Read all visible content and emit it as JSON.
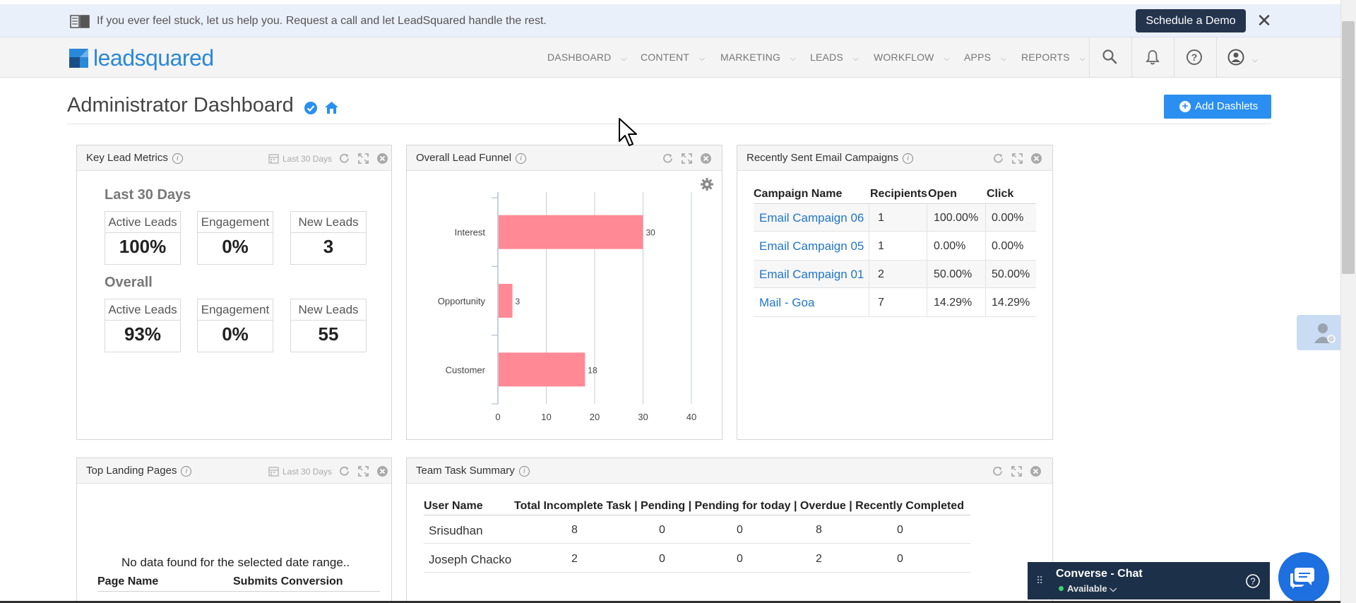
{
  "banner": {
    "message": "If you ever feel stuck, let us help you. Request a call and let LeadSquared handle the rest.",
    "demo_button": "Schedule a Demo",
    "close": "✕"
  },
  "logo": {
    "text": "leadsquared",
    "color": "#2a88d8"
  },
  "nav": {
    "items": [
      {
        "label": "DASHBOARD"
      },
      {
        "label": "CONTENT"
      },
      {
        "label": "MARKETING"
      },
      {
        "label": "LEADS"
      },
      {
        "label": "WORKFLOW"
      },
      {
        "label": "APPS"
      },
      {
        "label": "REPORTS"
      }
    ],
    "icons": [
      "search-icon",
      "bell-icon",
      "help-icon",
      "user-icon"
    ]
  },
  "header": {
    "title": "Administrator Dashboard",
    "add_dashlets": "Add Dashlets"
  },
  "key_lead_metrics": {
    "title": "Key Lead Metrics",
    "range": "Last 30 Days",
    "last30": {
      "heading": "Last 30 Days",
      "boxes": [
        {
          "label": "Active Leads",
          "value": "100%"
        },
        {
          "label": "Engagement",
          "value": "0%"
        },
        {
          "label": "New Leads",
          "value": "3"
        }
      ]
    },
    "overall": {
      "heading": "Overall",
      "boxes": [
        {
          "label": "Active Leads",
          "value": "93%"
        },
        {
          "label": "Engagement",
          "value": "0%"
        },
        {
          "label": "New Leads",
          "value": "55"
        }
      ]
    }
  },
  "lead_funnel": {
    "title": "Overall Lead Funnel"
  },
  "chart_data": {
    "type": "bar",
    "orientation": "horizontal",
    "title": "",
    "categories": [
      "Interest",
      "Opportunity",
      "Customer"
    ],
    "values": [
      30,
      3,
      18
    ],
    "xlim": [
      0,
      40
    ],
    "xticks": [
      0,
      10,
      20,
      30,
      40
    ],
    "bar_color": "#ff8a96",
    "grid": true
  },
  "email_campaigns": {
    "title": "Recently Sent Email Campaigns",
    "columns": [
      "Campaign Name",
      "Recipients",
      "Open",
      "Click"
    ],
    "rows": [
      {
        "name": "Email Campaign 06",
        "recipients": "1",
        "open": "100.00%",
        "click": "0.00%"
      },
      {
        "name": "Email Campaign 05",
        "recipients": "1",
        "open": "0.00%",
        "click": "0.00%"
      },
      {
        "name": "Email Campaign 01",
        "recipients": "2",
        "open": "50.00%",
        "click": "50.00%"
      },
      {
        "name": "Mail - Goa",
        "recipients": "7",
        "open": "14.29%",
        "click": "14.29%"
      }
    ]
  },
  "landing_pages": {
    "title": "Top Landing Pages",
    "range": "Last 30 Days",
    "empty": "No data found for the selected date range..",
    "columns": [
      "Page Name",
      "Submits Conversion"
    ]
  },
  "team_tasks": {
    "title": "Team Task Summary",
    "columns": [
      "User Name",
      "Total Incomplete Task | Pending | Pending for today | Overdue | Recently Completed"
    ],
    "rows": [
      {
        "user": "Srisudhan",
        "total": "8",
        "pending": "0",
        "today": "0",
        "overdue": "8",
        "completed": "0"
      },
      {
        "user": "Joseph Chacko",
        "total": "2",
        "pending": "0",
        "today": "0",
        "overdue": "2",
        "completed": "0"
      }
    ]
  },
  "chat": {
    "title": "Converse - Chat",
    "status": "Available"
  }
}
